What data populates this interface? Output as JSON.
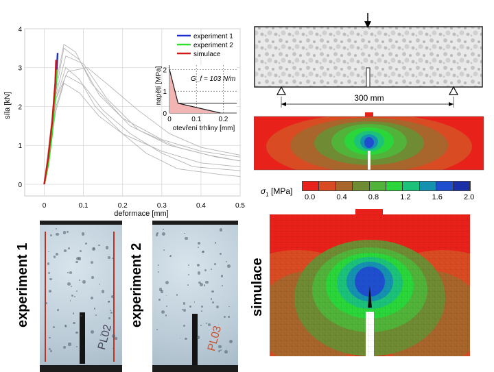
{
  "chart_data": {
    "type": "line",
    "xlabel": "deformace [mm]",
    "ylabel": "síla [kN]",
    "xlim": [
      -0.05,
      0.5
    ],
    "ylim": [
      -0.3,
      4.0
    ],
    "x_ticks": [
      "0",
      "0.1",
      "0.2",
      "0.3",
      "0.4",
      "0.5"
    ],
    "y_ticks": [
      "0",
      "1",
      "2",
      "3",
      "4"
    ],
    "grid": true,
    "legend_position": "top-right",
    "series": [
      {
        "name": "experiment 1",
        "color": "#1b2fd0",
        "points": [
          [
            0,
            0
          ],
          [
            0.01,
            0.6
          ],
          [
            0.02,
            1.5
          ],
          [
            0.03,
            2.6
          ],
          [
            0.034,
            3.38
          ]
        ]
      },
      {
        "name": "experiment 2",
        "color": "#2ee02e",
        "points": [
          [
            0,
            0
          ],
          [
            0.01,
            0.5
          ],
          [
            0.02,
            1.3
          ],
          [
            0.028,
            2.3
          ],
          [
            0.032,
            2.95
          ]
        ]
      },
      {
        "name": "simulace",
        "color": "#d01818",
        "points": [
          [
            0,
            0
          ],
          [
            0.01,
            0.7
          ],
          [
            0.02,
            1.6
          ],
          [
            0.028,
            2.6
          ],
          [
            0.03,
            3.2
          ]
        ]
      },
      {
        "name": "",
        "color": "#b4b4b4",
        "points": [
          [
            0,
            0
          ],
          [
            0.03,
            2.6
          ],
          [
            0.05,
            3.6
          ],
          [
            0.08,
            3.4
          ],
          [
            0.12,
            2.6
          ],
          [
            0.2,
            1.7
          ],
          [
            0.3,
            1.15
          ],
          [
            0.4,
            0.85
          ],
          [
            0.5,
            0.7
          ]
        ]
      },
      {
        "name": "",
        "color": "#b4b4b4",
        "points": [
          [
            0,
            0
          ],
          [
            0.03,
            2.4
          ],
          [
            0.05,
            3.5
          ],
          [
            0.09,
            3.2
          ],
          [
            0.14,
            2.3
          ],
          [
            0.22,
            1.5
          ],
          [
            0.32,
            1.0
          ],
          [
            0.42,
            0.75
          ],
          [
            0.5,
            0.6
          ]
        ]
      },
      {
        "name": "",
        "color": "#b4b4b4",
        "points": [
          [
            0,
            0
          ],
          [
            0.03,
            2.3
          ],
          [
            0.055,
            3.3
          ],
          [
            0.1,
            3.1
          ],
          [
            0.16,
            2.2
          ],
          [
            0.24,
            1.4
          ],
          [
            0.34,
            0.95
          ],
          [
            0.44,
            0.7
          ],
          [
            0.5,
            0.6
          ]
        ]
      },
      {
        "name": "",
        "color": "#b4b4b4",
        "points": [
          [
            0,
            0
          ],
          [
            0.03,
            2.2
          ],
          [
            0.055,
            3.0
          ],
          [
            0.09,
            2.7
          ],
          [
            0.13,
            2.0
          ],
          [
            0.2,
            1.3
          ],
          [
            0.3,
            0.85
          ],
          [
            0.4,
            0.55
          ],
          [
            0.5,
            0.45
          ]
        ]
      },
      {
        "name": "",
        "color": "#b4b4b4",
        "points": [
          [
            0,
            0
          ],
          [
            0.03,
            2.0
          ],
          [
            0.055,
            2.8
          ],
          [
            0.1,
            2.55
          ],
          [
            0.15,
            1.9
          ],
          [
            0.22,
            1.3
          ],
          [
            0.3,
            0.8
          ],
          [
            0.38,
            0.45
          ],
          [
            0.5,
            0.35
          ]
        ]
      },
      {
        "name": "",
        "color": "#b4b4b4",
        "points": [
          [
            0,
            0
          ],
          [
            0.03,
            1.9
          ],
          [
            0.05,
            2.6
          ],
          [
            0.09,
            2.35
          ],
          [
            0.14,
            1.75
          ],
          [
            0.2,
            1.3
          ],
          [
            0.26,
            0.8
          ],
          [
            0.34,
            0.4
          ],
          [
            0.45,
            0.25
          ],
          [
            0.5,
            0.2
          ]
        ]
      },
      {
        "name": "",
        "color": "#b4b4b4",
        "points": [
          [
            0,
            0
          ],
          [
            0.03,
            2.2
          ],
          [
            0.06,
            2.9
          ],
          [
            0.11,
            3.0
          ],
          [
            0.17,
            2.5
          ],
          [
            0.24,
            1.9
          ],
          [
            0.32,
            1.3
          ],
          [
            0.4,
            0.95
          ],
          [
            0.5,
            0.75
          ]
        ]
      }
    ],
    "inset": {
      "xlabel": "otevření trhliny [mm]",
      "ylabel": "napětí [MPa]",
      "annotation": "G_f = 103 N/m",
      "x_ticks": [
        "0",
        "0.1",
        "0.2"
      ],
      "y_ticks": [
        "0",
        "1",
        "2"
      ],
      "xlim": [
        0,
        0.25
      ],
      "ylim": [
        0,
        2.2
      ],
      "curve": [
        [
          0,
          2.0
        ],
        [
          0.032,
          0.45
        ],
        [
          0.19,
          0
        ]
      ]
    }
  },
  "beam": {
    "span_label": "300 mm"
  },
  "colorbar": {
    "symbol": "σ",
    "subscript": "1",
    "unit": " [MPa]",
    "tick_labels": [
      "0.0",
      "0.4",
      "0.8",
      "1.2",
      "1.6",
      "2.0"
    ],
    "colors": [
      "#e8221b",
      "#d94b22",
      "#a8652c",
      "#6f8b33",
      "#52b33a",
      "#2bd63b",
      "#1cc27a",
      "#1592b0",
      "#1f4fcf",
      "#1a2fa8"
    ]
  },
  "labels": {
    "experiment1": "experiment 1",
    "experiment2": "experiment 2",
    "simulace": "simulace"
  }
}
